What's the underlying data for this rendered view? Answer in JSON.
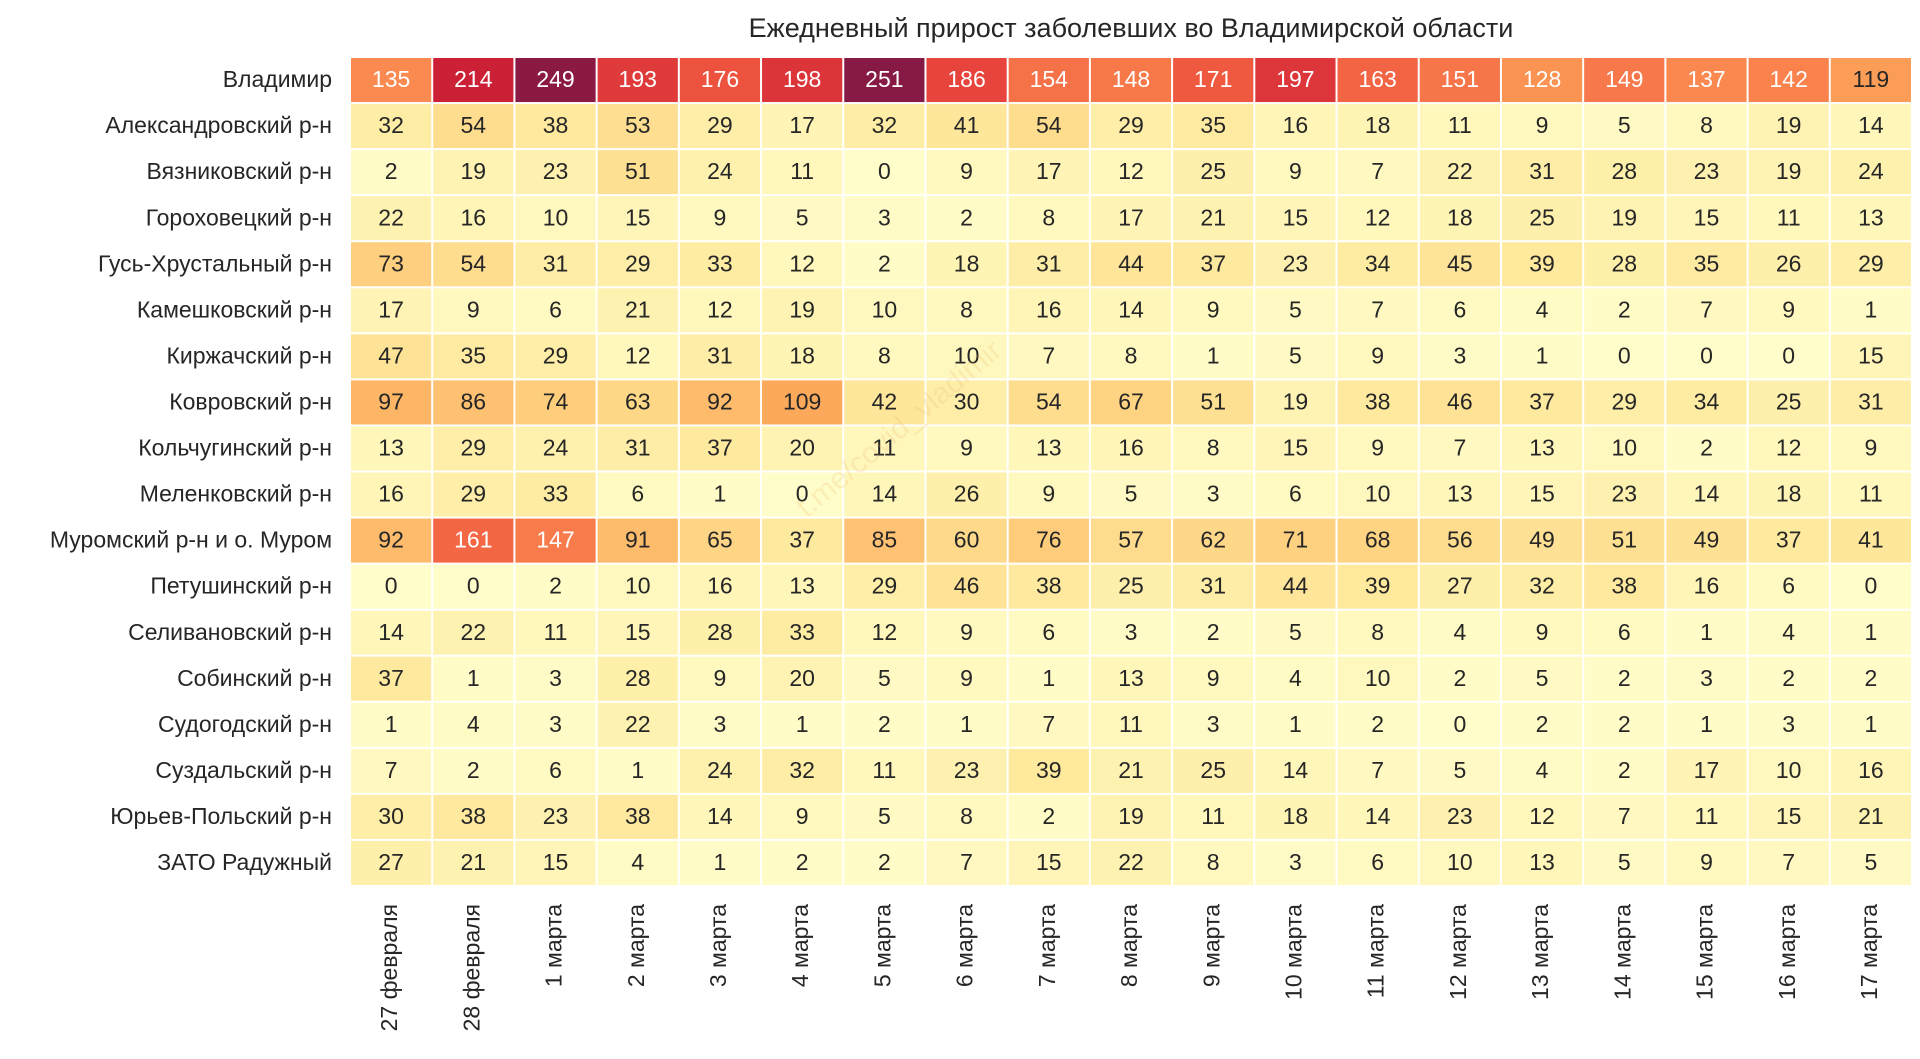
{
  "chart_data": {
    "type": "heatmap",
    "title": "Ежедневный прирост заболевших во Владимирской области",
    "watermark": "t.me/covid_vladimir",
    "x": [
      "27 февраля",
      "28 февраля",
      "1 марта",
      "2 марта",
      "3 марта",
      "4 марта",
      "5 марта",
      "6 марта",
      "7 марта",
      "8 марта",
      "9 марта",
      "10 марта",
      "11 марта",
      "12 марта",
      "13 марта",
      "14 марта",
      "15 марта",
      "16 марта",
      "17 марта"
    ],
    "categories": [
      "Владимир",
      "Александровский р-н",
      "Вязниковский р-н",
      "Гороховецкий р-н",
      "Гусь-Хрустальный р-н",
      "Камешковский р-н",
      "Киржачский р-н",
      "Ковровский р-н",
      "Кольчугинский р-н",
      "Меленковский р-н",
      "Муромский р-н и о. Муром",
      "Петушинский р-н",
      "Селивановский р-н",
      "Собинский р-н",
      "Судогодский р-н",
      "Суздальский р-н",
      "Юрьев-Польский р-н",
      "ЗАТО Радужный"
    ],
    "values": [
      [
        135,
        214,
        249,
        193,
        176,
        198,
        251,
        186,
        154,
        148,
        171,
        197,
        163,
        151,
        128,
        149,
        137,
        142,
        119
      ],
      [
        32,
        54,
        38,
        53,
        29,
        17,
        32,
        41,
        54,
        29,
        35,
        16,
        18,
        11,
        9,
        5,
        8,
        19,
        14
      ],
      [
        2,
        19,
        23,
        51,
        24,
        11,
        0,
        9,
        17,
        12,
        25,
        9,
        7,
        22,
        31,
        28,
        23,
        19,
        24
      ],
      [
        22,
        16,
        10,
        15,
        9,
        5,
        3,
        2,
        8,
        17,
        21,
        15,
        12,
        18,
        25,
        19,
        15,
        11,
        13
      ],
      [
        73,
        54,
        31,
        29,
        33,
        12,
        2,
        18,
        31,
        44,
        37,
        23,
        34,
        45,
        39,
        28,
        35,
        26,
        29
      ],
      [
        17,
        9,
        6,
        21,
        12,
        19,
        10,
        8,
        16,
        14,
        9,
        5,
        7,
        6,
        4,
        2,
        7,
        9,
        1
      ],
      [
        47,
        35,
        29,
        12,
        31,
        18,
        8,
        10,
        7,
        8,
        1,
        5,
        9,
        3,
        1,
        0,
        0,
        0,
        15
      ],
      [
        97,
        86,
        74,
        63,
        92,
        109,
        42,
        30,
        54,
        67,
        51,
        19,
        38,
        46,
        37,
        29,
        34,
        25,
        31
      ],
      [
        13,
        29,
        24,
        31,
        37,
        20,
        11,
        9,
        13,
        16,
        8,
        15,
        9,
        7,
        13,
        10,
        2,
        12,
        9
      ],
      [
        16,
        29,
        33,
        6,
        1,
        0,
        14,
        26,
        9,
        5,
        3,
        6,
        10,
        13,
        15,
        23,
        14,
        18,
        11
      ],
      [
        92,
        161,
        147,
        91,
        65,
        37,
        85,
        60,
        76,
        57,
        62,
        71,
        68,
        56,
        49,
        51,
        49,
        37,
        41
      ],
      [
        0,
        0,
        2,
        10,
        16,
        13,
        29,
        46,
        38,
        25,
        31,
        44,
        39,
        27,
        32,
        38,
        16,
        6,
        0
      ],
      [
        14,
        22,
        11,
        15,
        28,
        33,
        12,
        9,
        6,
        3,
        2,
        5,
        8,
        4,
        9,
        6,
        1,
        4,
        1
      ],
      [
        37,
        1,
        3,
        28,
        9,
        20,
        5,
        9,
        1,
        13,
        9,
        4,
        10,
        2,
        5,
        2,
        3,
        2,
        2
      ],
      [
        1,
        4,
        3,
        22,
        3,
        1,
        2,
        1,
        7,
        11,
        3,
        1,
        2,
        0,
        2,
        2,
        1,
        3,
        1
      ],
      [
        7,
        2,
        6,
        1,
        24,
        32,
        11,
        23,
        39,
        21,
        25,
        14,
        7,
        5,
        4,
        2,
        17,
        10,
        16
      ],
      [
        30,
        38,
        23,
        38,
        14,
        9,
        5,
        8,
        2,
        19,
        11,
        18,
        14,
        23,
        12,
        7,
        11,
        15,
        21
      ],
      [
        27,
        21,
        15,
        4,
        1,
        2,
        2,
        7,
        15,
        22,
        8,
        3,
        6,
        10,
        13,
        5,
        9,
        7,
        5
      ]
    ],
    "colormap": [
      "#fffdc9",
      "#feeba0",
      "#fed07f",
      "#fdab5c",
      "#f9804c",
      "#ec4d3d",
      "#cb1f37",
      "#861a44"
    ],
    "vmin": 0,
    "vmax": 251
  }
}
